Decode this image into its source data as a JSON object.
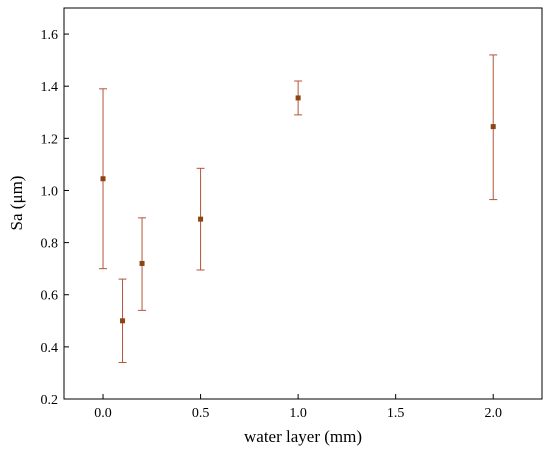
{
  "chart_data": {
    "type": "scatter",
    "title": "",
    "xlabel": "water layer (mm)",
    "ylabel": "Sa (μm)",
    "xlim": [
      -0.2,
      2.25
    ],
    "ylim": [
      0.2,
      1.7
    ],
    "xticks": [
      0.0,
      0.5,
      1.0,
      1.5,
      2.0
    ],
    "xtick_labels": [
      "0.0",
      "0.5",
      "1.0",
      "1.5",
      "2.0"
    ],
    "yticks": [
      0.2,
      0.4,
      0.6,
      0.8,
      1.0,
      1.2,
      1.4,
      1.6
    ],
    "ytick_labels": [
      "0.2",
      "0.4",
      "0.6",
      "0.8",
      "1.0",
      "1.2",
      "1.4",
      "1.6"
    ],
    "grid": false,
    "legend": "none",
    "series": [
      {
        "color": "#8b4513",
        "errorbar_color": "#b5543a",
        "points": [
          {
            "x": 0.0,
            "y": 1.045,
            "err_low": 0.7,
            "err_high": 1.39
          },
          {
            "x": 0.1,
            "y": 0.5,
            "err_low": 0.34,
            "err_high": 0.66
          },
          {
            "x": 0.2,
            "y": 0.72,
            "err_low": 0.54,
            "err_high": 0.895
          },
          {
            "x": 0.5,
            "y": 0.89,
            "err_low": 0.695,
            "err_high": 1.085
          },
          {
            "x": 1.0,
            "y": 1.355,
            "err_low": 1.29,
            "err_high": 1.42
          },
          {
            "x": 2.0,
            "y": 1.245,
            "err_low": 0.965,
            "err_high": 1.52
          }
        ]
      }
    ]
  }
}
